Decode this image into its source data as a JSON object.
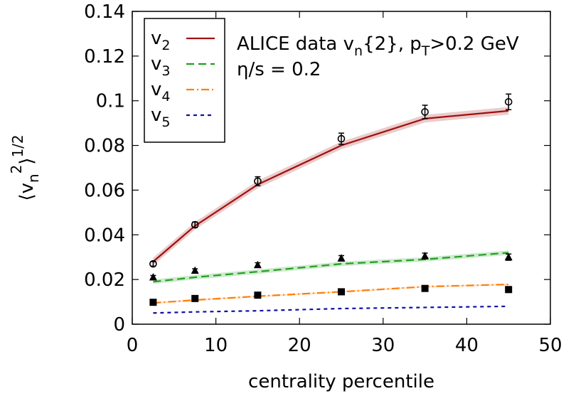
{
  "chart_data": {
    "type": "line",
    "xlabel": "centrality percentile",
    "ylabel": {
      "open": "⟨v",
      "sub": "n",
      "sup": "2",
      "close": "⟩",
      "power": "1/2"
    },
    "xlim": [
      0,
      50
    ],
    "ylim": [
      0,
      0.14
    ],
    "xticks": [
      "0",
      "10",
      "20",
      "30",
      "40",
      "50"
    ],
    "yticks": [
      "0",
      "0.02",
      "0.04",
      "0.06",
      "0.08",
      "0.1",
      "0.12",
      "0.14"
    ],
    "grid": false,
    "legend_position": "top-left",
    "annotations": [
      {
        "main": "ALICE data v",
        "sub": "n",
        "mid": "{2}, p",
        "sub2": "T",
        "tail": ">0.2 GeV"
      },
      {
        "text": "η/s = 0.2"
      }
    ],
    "series": [
      {
        "name": "v",
        "sub": "2",
        "color": "#a01010",
        "dash": "",
        "x": [
          2.5,
          7.5,
          15,
          25,
          35,
          45
        ],
        "values": [
          0.028,
          0.044,
          0.0625,
          0.08,
          0.092,
          0.0955
        ],
        "band": 0.0017
      },
      {
        "name": "v",
        "sub": "3",
        "color": "#1fa01f",
        "dash": "11,6",
        "x": [
          2.5,
          7.5,
          15,
          25,
          35,
          45
        ],
        "values": [
          0.019,
          0.021,
          0.0235,
          0.027,
          0.029,
          0.032
        ],
        "band": 0.001
      },
      {
        "name": "v",
        "sub": "4",
        "color": "#ff7f0e",
        "dash": "11,4,2,4",
        "x": [
          2.5,
          7.5,
          15,
          25,
          35,
          45
        ],
        "values": [
          0.0095,
          0.0108,
          0.0125,
          0.0145,
          0.0168,
          0.0178
        ],
        "band": 0.0004
      },
      {
        "name": "v",
        "sub": "5",
        "color": "#1010a0",
        "dash": "5,5",
        "x": [
          2.5,
          7.5,
          15,
          25,
          35,
          45
        ],
        "values": [
          0.005,
          0.0055,
          0.006,
          0.007,
          0.0075,
          0.008
        ],
        "band": 0
      }
    ],
    "data_points": [
      {
        "marker": "circle",
        "x": [
          2.5,
          7.5,
          15,
          25,
          35,
          45
        ],
        "y": [
          0.027,
          0.0445,
          0.064,
          0.083,
          0.095,
          0.0995
        ],
        "err": [
          0.001,
          0.0012,
          0.002,
          0.0025,
          0.003,
          0.0035
        ]
      },
      {
        "marker": "triangle",
        "x": [
          2.5,
          7.5,
          15,
          25,
          35,
          45
        ],
        "y": [
          0.021,
          0.024,
          0.0265,
          0.0295,
          0.0305,
          0.03
        ],
        "err": [
          0.0008,
          0.0008,
          0.001,
          0.0012,
          0.0013,
          0.0014
        ]
      },
      {
        "marker": "square",
        "x": [
          2.5,
          7.5,
          15,
          25,
          35,
          45
        ],
        "y": [
          0.0098,
          0.0115,
          0.013,
          0.0145,
          0.016,
          0.0155
        ],
        "err": [
          0.0005,
          0.0005,
          0.0006,
          0.0006,
          0.0007,
          0.0008
        ]
      }
    ]
  }
}
